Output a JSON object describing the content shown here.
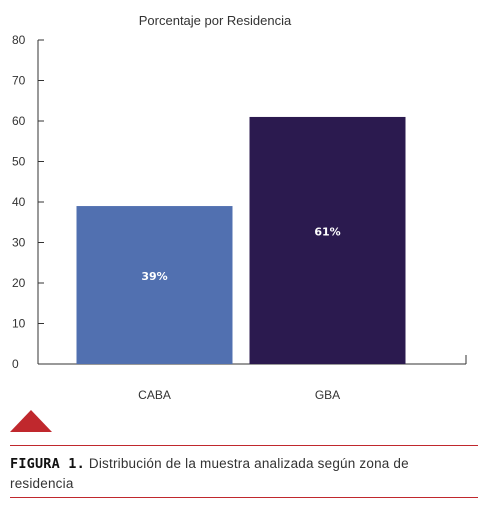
{
  "chart_data": {
    "type": "bar",
    "title": "Porcentaje por Residencia",
    "categories": [
      "CABA",
      "GBA"
    ],
    "values": [
      39,
      61
    ],
    "value_labels": [
      "39%",
      "61%"
    ],
    "xlabel": "",
    "ylabel": "",
    "ylim": [
      0,
      80
    ],
    "yticks": [
      "0",
      "10",
      "20",
      "30",
      "40",
      "50",
      "60",
      "70",
      "80"
    ],
    "grid": false,
    "colors": [
      "#5170b0",
      "#2b1a4f"
    ]
  },
  "caption": {
    "label": "FIGURA 1.",
    "text": "Distribución de la muestra analizada según zona de residencia"
  },
  "colors": {
    "accent": "#c0282d"
  }
}
